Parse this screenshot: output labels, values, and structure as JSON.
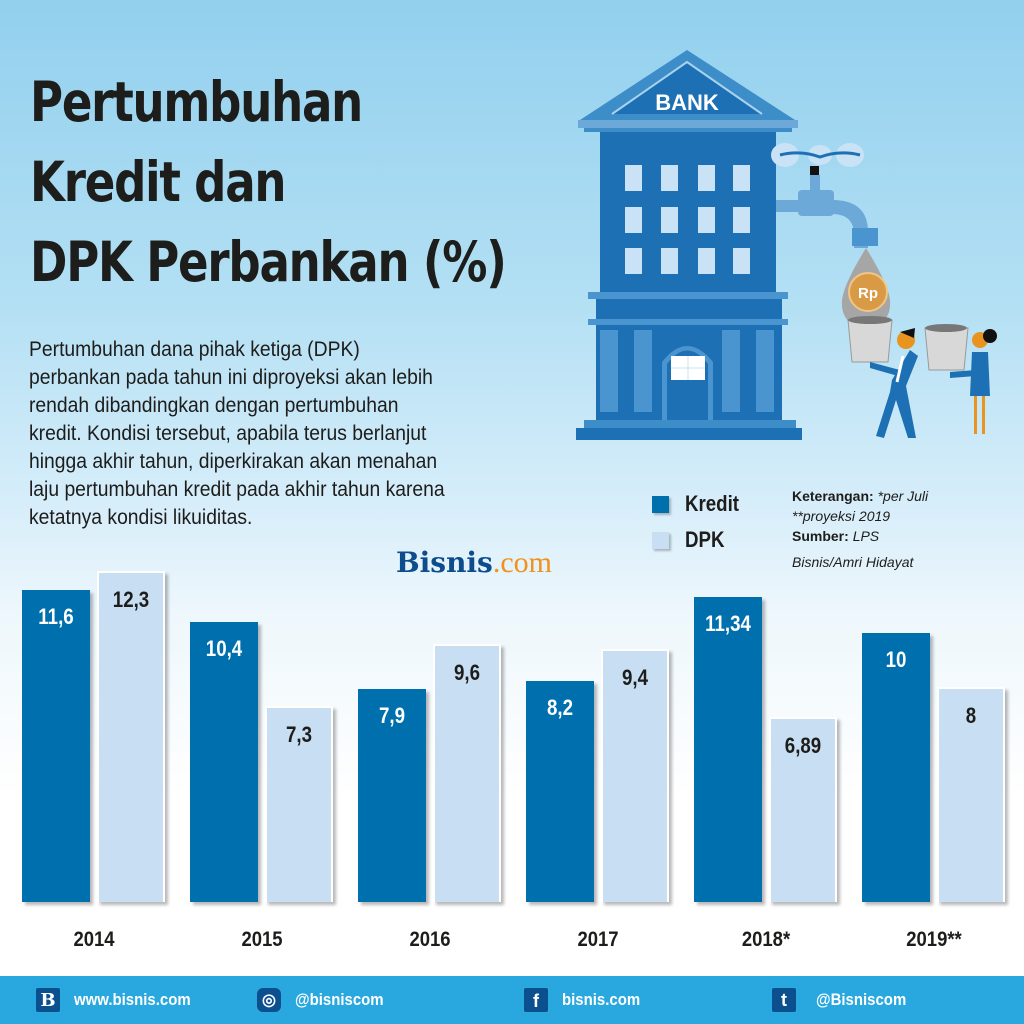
{
  "title": {
    "lines": [
      "Pertumbuhan",
      "Kredit dan",
      "DPK Perbankan (%)"
    ]
  },
  "description": {
    "lines": [
      "Pertumbuhan dana pihak ketiga (DPK)",
      "perbankan pada tahun ini diproyeksi akan lebih",
      "rendah dibandingkan dengan pertumbuhan",
      "kredit. Kondisi tersebut, apabila terus berlanjut",
      "hingga akhir tahun, diperkirakan akan menahan",
      "laju pertumbuhan kredit pada akhir tahun karena",
      "ketatnya kondisi likuiditas."
    ]
  },
  "illustration": {
    "bank_label": "BANK",
    "coin_label": "Rp"
  },
  "legend": {
    "items": [
      {
        "label": "Kredit",
        "color": "#006fad"
      },
      {
        "label": "DPK",
        "color": "#c8def2"
      }
    ]
  },
  "notes": {
    "keterangan_label": "Keterangan:",
    "keterangan_1": "*per Juli",
    "keterangan_2": "**proyeksi 2019",
    "sumber_label": "Sumber:",
    "sumber_value": "LPS",
    "credit": "Bisnis/Amri Hidayat"
  },
  "brand": {
    "part1": "Bisnis",
    "part2": ".com"
  },
  "chart_data": {
    "type": "bar",
    "title": "Pertumbuhan Kredit dan DPK Perbankan (%)",
    "xlabel": "",
    "ylabel": "%",
    "categories": [
      "2014",
      "2015",
      "2016",
      "2017",
      "2018*",
      "2019**"
    ],
    "series": [
      {
        "name": "Kredit",
        "color": "#006fad",
        "values": [
          11.6,
          10.4,
          7.9,
          8.2,
          11.34,
          10
        ],
        "labels": [
          "11,6",
          "10,4",
          "7,9",
          "8,2",
          "11,34",
          "10"
        ]
      },
      {
        "name": "DPK",
        "color": "#c8def2",
        "values": [
          12.3,
          7.3,
          9.6,
          9.4,
          6.89,
          8
        ],
        "labels": [
          "12,3",
          "7,3",
          "9,6",
          "9,4",
          "6,89",
          "8"
        ]
      }
    ],
    "ylim": [
      0,
      12.3
    ],
    "grid": false,
    "legend_position": "upper-right",
    "annotations": [
      "*per Juli",
      "**proyeksi 2019",
      "Sumber: LPS"
    ]
  },
  "footer": {
    "items": [
      {
        "icon": "bisnis-logo-icon",
        "glyph": "B",
        "text": "www.bisnis.com"
      },
      {
        "icon": "instagram-icon",
        "glyph": "◎",
        "text": "@bisniscom"
      },
      {
        "icon": "facebook-icon",
        "glyph": "f",
        "text": "bisnis.com"
      },
      {
        "icon": "twitter-icon",
        "glyph": "t",
        "text": "@Bisniscom"
      }
    ]
  }
}
